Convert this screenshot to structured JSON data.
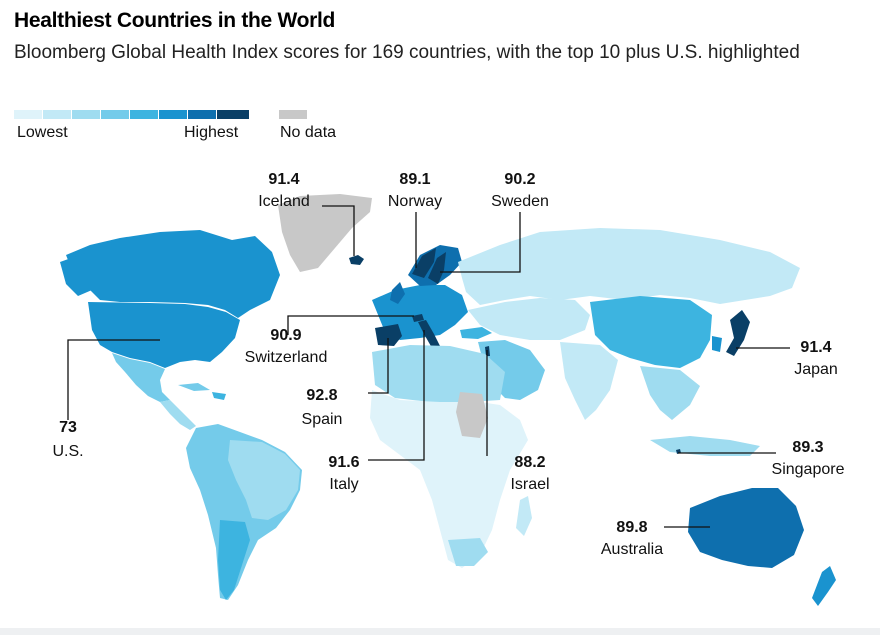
{
  "header": {
    "title": "Healthiest Countries in the World",
    "subtitle": "Bloomberg Global Health Index scores for 169 countries, with the top 10 plus U.S. highlighted"
  },
  "legend": {
    "low_label": "Lowest",
    "high_label": "Highest",
    "nodata_label": "No data",
    "scale_colors": [
      "#dff3fa",
      "#c2e9f6",
      "#9fdcf0",
      "#74cbea",
      "#3db4e0",
      "#1a93cf",
      "#0e6fae",
      "#0a3f66"
    ],
    "nodata_color": "#c8c8c8"
  },
  "annotations": [
    {
      "country": "Iceland",
      "score": "91.4"
    },
    {
      "country": "Norway",
      "score": "89.1"
    },
    {
      "country": "Sweden",
      "score": "90.2"
    },
    {
      "country": "Switzerland",
      "score": "90.9"
    },
    {
      "country": "Japan",
      "score": "91.4"
    },
    {
      "country": "Spain",
      "score": "92.8"
    },
    {
      "country": "U.S.",
      "score": "73"
    },
    {
      "country": "Singapore",
      "score": "89.3"
    },
    {
      "country": "Italy",
      "score": "91.6"
    },
    {
      "country": "Israel",
      "score": "88.2"
    },
    {
      "country": "Australia",
      "score": "89.8"
    }
  ]
}
